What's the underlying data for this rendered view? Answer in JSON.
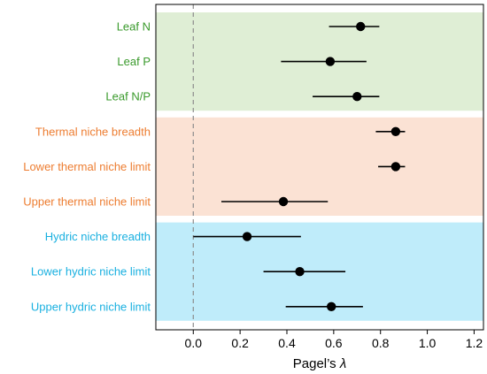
{
  "chart_data": {
    "type": "scatter",
    "subtype": "dot-and-whisker",
    "title": "",
    "xlabel": "Pagel’s",
    "xlabel_symbol": "λ",
    "ylabel": "",
    "xlim": [
      -0.16,
      1.24
    ],
    "xticks": [
      "0.0",
      "0.2",
      "0.4",
      "0.6",
      "0.8",
      "1.0",
      "1.2"
    ],
    "xtick_values": [
      0.0,
      0.2,
      0.4,
      0.6,
      0.8,
      1.0,
      1.2
    ],
    "reference_line": 0,
    "reference_line_style": "dashed",
    "grid": false,
    "point_color": "#000000",
    "groups": [
      {
        "color": "#3a9a2c",
        "band_color": "#dfeed5",
        "items": [
          {
            "label": "Leaf N",
            "value": 0.715,
            "lower": 0.58,
            "upper": 0.795
          },
          {
            "label": "Leaf P",
            "value": 0.585,
            "lower": 0.375,
            "upper": 0.74
          },
          {
            "label": "Leaf N/P",
            "value": 0.7,
            "lower": 0.51,
            "upper": 0.795
          }
        ]
      },
      {
        "color": "#ed7d31",
        "band_color": "#fbe2d4",
        "items": [
          {
            "label": "Thermal niche breadth",
            "value": 0.865,
            "lower": 0.78,
            "upper": 0.905
          },
          {
            "label": "Lower thermal niche limit",
            "value": 0.865,
            "lower": 0.79,
            "upper": 0.905
          },
          {
            "label": "Upper thermal niche limit",
            "value": 0.385,
            "lower": 0.12,
            "upper": 0.575
          }
        ]
      },
      {
        "color": "#19b0e0",
        "band_color": "#bfecfa",
        "items": [
          {
            "label": "Hydric niche breadth",
            "value": 0.23,
            "lower": 0.0,
            "upper": 0.46
          },
          {
            "label": "Lower hydric niche limit",
            "value": 0.455,
            "lower": 0.3,
            "upper": 0.65
          },
          {
            "label": "Upper hydric niche limit",
            "value": 0.59,
            "lower": 0.395,
            "upper": 0.725
          }
        ]
      }
    ]
  }
}
